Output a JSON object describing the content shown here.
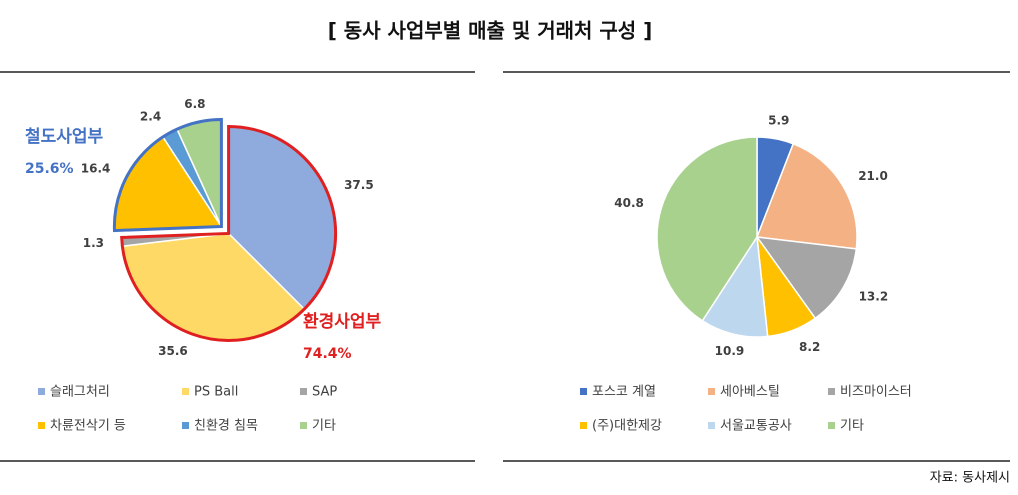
{
  "title": "[ 동사 사업부별 매출 및 거래처 구성 ]",
  "source": "자료: 동사제시",
  "chart_data": [
    {
      "type": "pie",
      "categories": [
        "슬래그처리",
        "PS Ball",
        "SAP",
        "차륜전삭기 등",
        "친환경 침목",
        "기타"
      ],
      "values": [
        37.5,
        35.6,
        1.3,
        16.4,
        2.4,
        6.8
      ],
      "colors": [
        "#8faadc",
        "#ffd966",
        "#a5a5a5",
        "#ffc000",
        "#5b9bd5",
        "#a9d18e"
      ],
      "annotations": [
        {
          "label": "환경사업부",
          "value": 74.4,
          "value_label": "74.4%",
          "color": "#e02020"
        },
        {
          "label": "철도사업부",
          "value": 25.6,
          "value_label": "25.6%",
          "color": "#4472c4"
        }
      ]
    },
    {
      "type": "pie",
      "categories": [
        "포스코 계열",
        "세아베스틸",
        "비즈마이스터",
        "(주)대한제강",
        "서울교통공사",
        "기타"
      ],
      "values": [
        5.9,
        21.0,
        13.2,
        8.2,
        10.9,
        40.8
      ],
      "value_labels": [
        "5.9",
        "21.0",
        "13.2",
        "8.2",
        "10.9",
        "40.8"
      ],
      "colors": [
        "#4472c4",
        "#f4b183",
        "#a5a5a5",
        "#ffc000",
        "#bdd7ee",
        "#a9d18e"
      ]
    }
  ]
}
